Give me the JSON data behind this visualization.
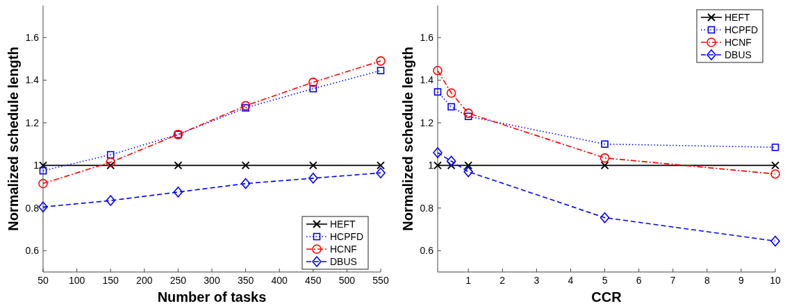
{
  "chart_data": [
    {
      "type": "line",
      "xlabel": "Number of tasks",
      "ylabel": "Normalized schedule length",
      "x": [
        50,
        150,
        250,
        350,
        450,
        550
      ],
      "xlim": [
        50,
        550
      ],
      "xticks": [
        50,
        100,
        150,
        200,
        250,
        300,
        350,
        400,
        450,
        500,
        550
      ],
      "ylim": [
        0.5,
        1.75
      ],
      "yticks": [
        0.6,
        0.8,
        1,
        1.2,
        1.4,
        1.6
      ],
      "grid": false,
      "legend": "bottom right",
      "series": [
        {
          "name": "HEFT",
          "color": "#000000",
          "marker": "cross",
          "line_style": "solid",
          "values": [
            1,
            1,
            1,
            1,
            1,
            1
          ]
        },
        {
          "name": "HCPFD",
          "color": "#0000ff",
          "marker": "square",
          "line_style": "dotted",
          "values": [
            0.975,
            1.05,
            1.145,
            1.27,
            1.36,
            1.445
          ]
        },
        {
          "name": "HCNF",
          "color": "#ff0000",
          "marker": "circle",
          "line_style": "dashdot",
          "values": [
            0.915,
            1.015,
            1.145,
            1.28,
            1.39,
            1.49
          ]
        },
        {
          "name": "DBUS",
          "color": "#0000ff",
          "marker": "diamond",
          "line_style": "dashed",
          "values": [
            0.805,
            0.835,
            0.875,
            0.915,
            0.94,
            0.965
          ]
        }
      ]
    },
    {
      "type": "line",
      "xlabel": "CCR",
      "ylabel": "Normalized schedule length",
      "x": [
        0.1,
        0.5,
        1,
        5,
        10
      ],
      "xlim": [
        0.1,
        10
      ],
      "xticks": [
        1,
        2,
        3,
        4,
        5,
        6,
        7,
        8,
        9,
        10
      ],
      "ylim": [
        0.5,
        1.75
      ],
      "yticks": [
        0.6,
        0.8,
        1,
        1.2,
        1.4,
        1.6
      ],
      "grid": false,
      "legend": "top right",
      "series": [
        {
          "name": "HEFT",
          "color": "#000000",
          "marker": "cross",
          "line_style": "solid",
          "values": [
            1,
            1,
            1,
            1,
            1
          ]
        },
        {
          "name": "HCPFD",
          "color": "#0000ff",
          "marker": "square",
          "line_style": "dotted",
          "values": [
            1.345,
            1.275,
            1.23,
            1.1,
            1.085
          ]
        },
        {
          "name": "HCNF",
          "color": "#ff0000",
          "marker": "circle",
          "line_style": "dashdot",
          "values": [
            1.445,
            1.34,
            1.245,
            1.035,
            0.96
          ]
        },
        {
          "name": "DBUS",
          "color": "#0000ff",
          "marker": "diamond",
          "line_style": "dashed",
          "values": [
            1.06,
            1.02,
            0.97,
            0.755,
            0.645
          ]
        }
      ]
    }
  ]
}
